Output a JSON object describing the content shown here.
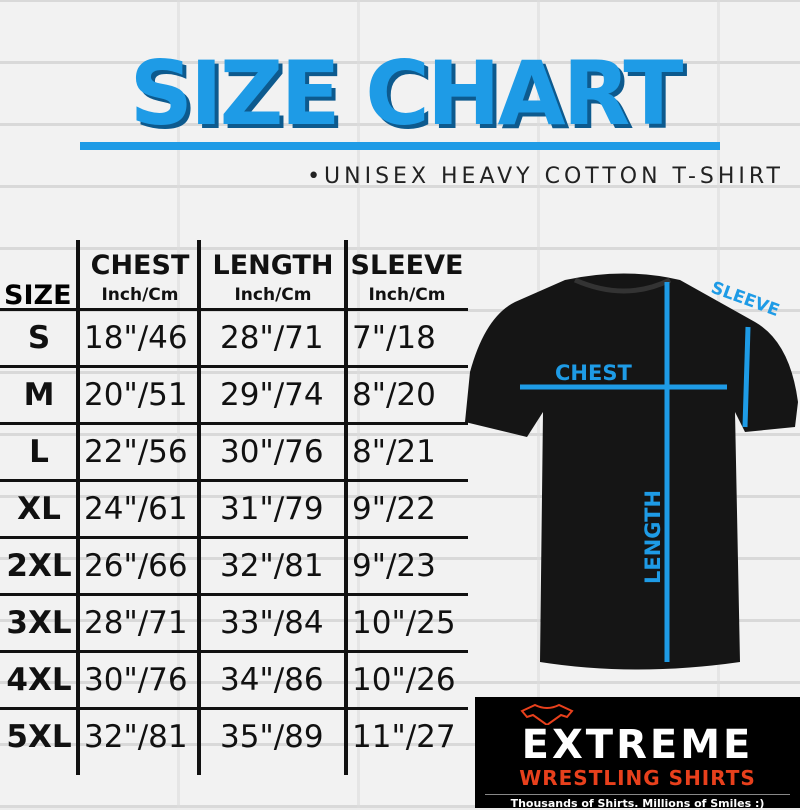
{
  "title": "SIZE CHART",
  "subtitle": "•UNISEX HEAVY COTTON T-SHIRT",
  "accent_color": "#1e9be6",
  "table": {
    "size_header": "SIZE",
    "columns": [
      {
        "name": "CHEST",
        "unit": "Inch/Cm"
      },
      {
        "name": "LENGTH",
        "unit": "Inch/Cm"
      },
      {
        "name": "SLEEVE",
        "unit": "Inch/Cm"
      }
    ],
    "rows": [
      {
        "size": "S",
        "chest": "18\"/46",
        "length": "28\"/71",
        "sleeve": "7\"/18"
      },
      {
        "size": "M",
        "chest": "20\"/51",
        "length": "29\"/74",
        "sleeve": "8\"/20"
      },
      {
        "size": "L",
        "chest": "22\"/56",
        "length": "30\"/76",
        "sleeve": "8\"/21"
      },
      {
        "size": "XL",
        "chest": "24\"/61",
        "length": "31\"/79",
        "sleeve": "9\"/22"
      },
      {
        "size": "2XL",
        "chest": "26\"/66",
        "length": "32\"/81",
        "sleeve": "9\"/23"
      },
      {
        "size": "3XL",
        "chest": "28\"/71",
        "length": "33\"/84",
        "sleeve": "10\"/25"
      },
      {
        "size": "4XL",
        "chest": "30\"/76",
        "length": "34\"/86",
        "sleeve": "10\"/26"
      },
      {
        "size": "5XL",
        "chest": "32\"/81",
        "length": "35\"/89",
        "sleeve": "11\"/27"
      }
    ]
  },
  "diagram": {
    "chest": "CHEST",
    "length": "LENGTH",
    "sleeve": "SLEEVE"
  },
  "logo": {
    "line1": "EXTREME",
    "line2": "WRESTLING SHIRTS",
    "tagline": "Thousands of Shirts. Millions of Smiles :)"
  }
}
